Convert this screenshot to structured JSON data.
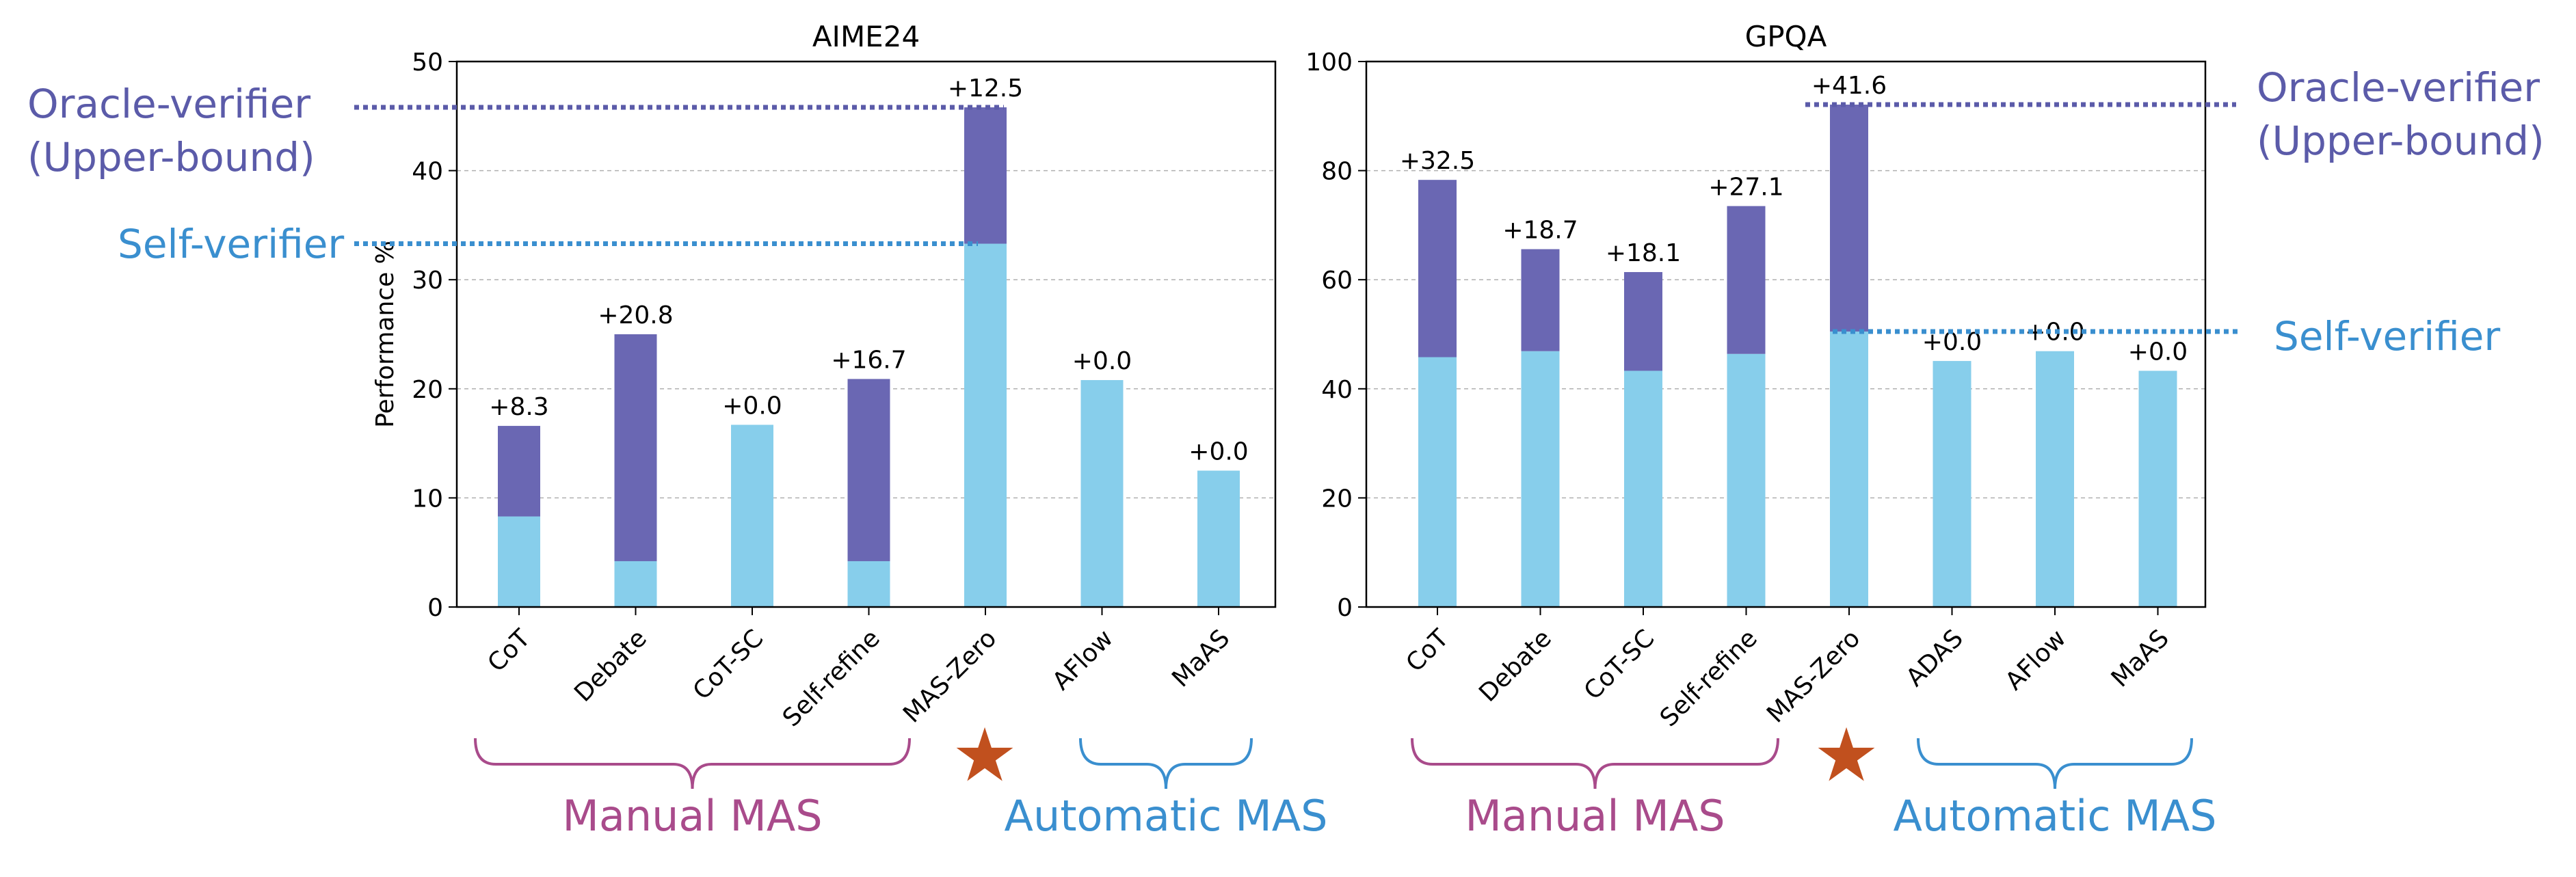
{
  "chart_data": [
    {
      "type": "bar",
      "stacked": true,
      "title": "AIME24",
      "ylabel": "Performance %",
      "ylim": [
        0,
        50
      ],
      "yticks": [
        "0",
        "10",
        "20",
        "30",
        "40",
        "50"
      ],
      "grid": true,
      "categories": [
        "CoT",
        "Debate",
        "CoT-SC",
        "Self-refine",
        "MAS-Zero",
        "AFlow",
        "MaAS"
      ],
      "series": [
        {
          "name": "Self-verifier",
          "values": [
            8.3,
            4.2,
            16.7,
            4.2,
            33.3,
            20.8,
            12.5
          ]
        },
        {
          "name": "Oracle-verifier gain",
          "values": [
            8.3,
            20.8,
            0.0,
            16.7,
            12.5,
            0.0,
            0.0
          ]
        }
      ],
      "bar_labels": [
        "+8.3",
        "+20.8",
        "+0.0",
        "+16.7",
        "+12.5",
        "+0.0",
        "+0.0"
      ],
      "oracle_level": 45.8,
      "self_level": 33.3,
      "oracle_label": [
        "Oracle-verifier",
        "(Upper-bound)"
      ],
      "self_label": "Self-verifier",
      "manual_label": "Manual MAS",
      "automatic_label": "Automatic MAS",
      "manual_count": 4,
      "automatic_count": 2,
      "star_glyph": "★"
    },
    {
      "type": "bar",
      "stacked": true,
      "title": "GPQA",
      "ylabel": "",
      "ylim": [
        0,
        100
      ],
      "yticks": [
        "0",
        "20",
        "40",
        "60",
        "80",
        "100"
      ],
      "grid": true,
      "categories": [
        "CoT",
        "Debate",
        "CoT-SC",
        "Self-refine",
        "MAS-Zero",
        "ADAS",
        "AFlow",
        "MaAS"
      ],
      "series": [
        {
          "name": "Self-verifier",
          "values": [
            45.8,
            46.9,
            43.3,
            46.4,
            50.5,
            45.1,
            46.9,
            43.3
          ]
        },
        {
          "name": "Oracle-verifier gain",
          "values": [
            32.5,
            18.7,
            18.1,
            27.1,
            41.6,
            0.0,
            0.0,
            0.0
          ]
        }
      ],
      "bar_labels": [
        "+32.5",
        "+18.7",
        "+18.1",
        "+27.1",
        "+41.6",
        "+0.0",
        "+0.0",
        "+0.0"
      ],
      "oracle_level": 92.1,
      "self_level": 50.5,
      "oracle_label": [
        "Oracle-verifier",
        "(Upper-bound)"
      ],
      "self_label": "Self-verifier",
      "manual_label": "Manual MAS",
      "automatic_label": "Automatic MAS",
      "manual_count": 4,
      "automatic_count": 3,
      "star_glyph": "★"
    }
  ],
  "colors": {
    "self_bar": "#87ceeb",
    "oracle_bar": "#6a67b3",
    "oracle_line": "#5b5ba9",
    "self_line": "#3a8fcf",
    "manual": "#a94b8b",
    "automatic": "#3a8fcf",
    "star": "#c1501e",
    "grid": "#b0b0b0"
  }
}
